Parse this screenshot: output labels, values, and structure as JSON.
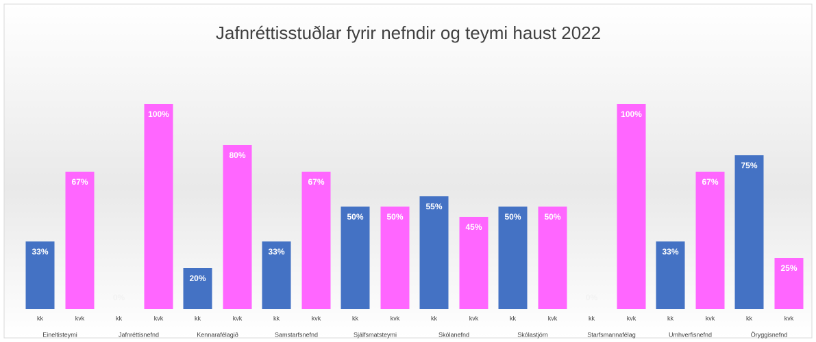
{
  "chart_data": {
    "type": "bar",
    "title": "Jafnréttisstuðlar fyrir nefndir og teymi haust 2022",
    "categories": [
      "Eineltisteymi",
      "Jafnréttisnefnd",
      "Kennarafélagið",
      "Samstarfsnefnd",
      "Sjálfsmatsteymi",
      "Skólanefnd",
      "Skólastjórn",
      "Starfsmannafélag",
      "Umhverfisnefnd",
      "Öryggisnefnd"
    ],
    "series": [
      {
        "name": "kk",
        "color": "#4472c4",
        "values": [
          33,
          0,
          20,
          33,
          50,
          55,
          50,
          0,
          33,
          75
        ],
        "value_labels": [
          "33%",
          "0%",
          "20%",
          "33%",
          "50%",
          "55%",
          "50%",
          "0%",
          "33%",
          "75%"
        ]
      },
      {
        "name": "kvk",
        "color": "#ff66ff",
        "values": [
          67,
          100,
          80,
          67,
          50,
          45,
          50,
          100,
          67,
          25
        ],
        "value_labels": [
          "67%",
          "100%",
          "80%",
          "67%",
          "50%",
          "45%",
          "50%",
          "100%",
          "67%",
          "25%"
        ]
      }
    ]
  }
}
